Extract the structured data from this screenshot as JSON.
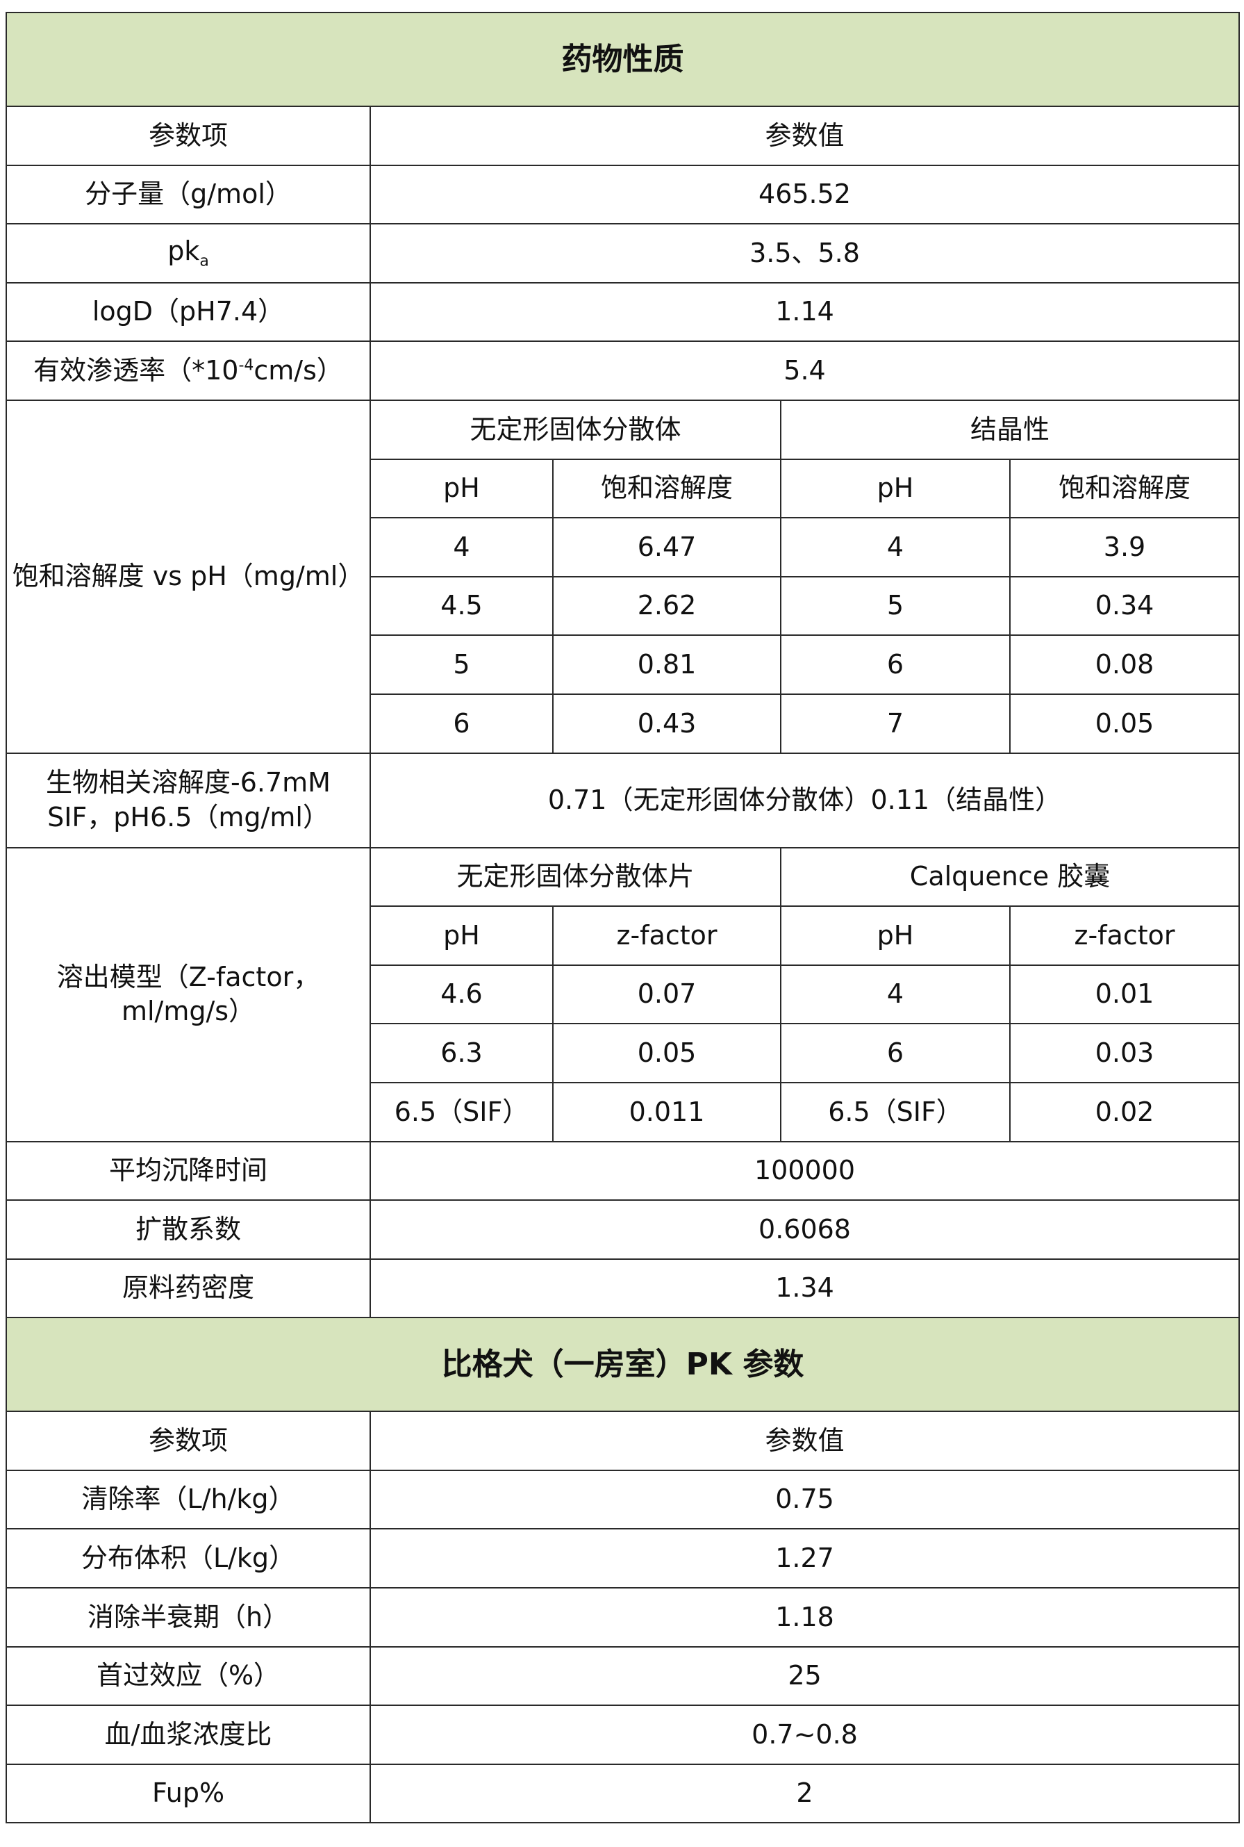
{
  "drug_properties": {
    "title": "药物性质",
    "header": {
      "param": "参数项",
      "value": "参数值"
    },
    "molecular_weight": {
      "label": "分子量（g/mol）",
      "value": "465.52"
    },
    "pka": {
      "label": "pk",
      "sub": "a",
      "value": "3.5、5.8"
    },
    "logd": {
      "label": "logD（pH7.4）",
      "value": "1.14"
    },
    "permeability": {
      "label": "有效渗透率（*10",
      "sup": "-4",
      "label_suffix": "cm/s）",
      "value": "5.4"
    },
    "solubility": {
      "label": "饱和溶解度 vs pH（mg/ml）",
      "groups": [
        "无定形固体分散体",
        "结晶性"
      ],
      "columns": [
        "pH",
        "饱和溶解度",
        "pH",
        "饱和溶解度"
      ],
      "rows": [
        [
          "4",
          "6.47",
          "4",
          "3.9"
        ],
        [
          "4.5",
          "2.62",
          "5",
          "0.34"
        ],
        [
          "5",
          "0.81",
          "6",
          "0.08"
        ],
        [
          "6",
          "0.43",
          "7",
          "0.05"
        ]
      ]
    },
    "biorelevant": {
      "label": "生物相关溶解度-6.7mM SIF，pH6.5（mg/ml）",
      "value": "0.71（无定形固体分散体）0.11（结晶性）"
    },
    "dissolution": {
      "label": "溶出模型（Z-factor，ml/mg/s）",
      "groups": [
        "无定形固体分散体片",
        "Calquence 胶囊"
      ],
      "columns": [
        "pH",
        "z-factor",
        "pH",
        "z-factor"
      ],
      "rows": [
        [
          "4.6",
          "0.07",
          "4",
          "0.01"
        ],
        [
          "6.3",
          "0.05",
          "6",
          "0.03"
        ],
        [
          "6.5（SIF）",
          "0.011",
          "6.5（SIF）",
          "0.02"
        ]
      ]
    },
    "tail_rows": [
      {
        "label": "平均沉降时间",
        "value": "100000"
      },
      {
        "label": "扩散系数",
        "value": "0.6068"
      },
      {
        "label": "原料药密度",
        "value": "1.34"
      }
    ]
  },
  "pk_parameters": {
    "title": "比格犬（一房室）PK 参数",
    "header": {
      "param": "参数项",
      "value": "参数值"
    },
    "rows": [
      {
        "label": "清除率（L/h/kg）",
        "value": "0.75"
      },
      {
        "label": "分布体积（L/kg）",
        "value": "1.27"
      },
      {
        "label": "消除半衰期（h）",
        "value": "1.18"
      },
      {
        "label": "首过效应（%）",
        "value": "25"
      },
      {
        "label": "血/血浆浓度比",
        "value": "0.7~0.8"
      },
      {
        "label": "Fup%",
        "value": "2"
      }
    ]
  },
  "colors": {
    "section_header_bg": "#d7e4bd",
    "border": "#2a2a2a"
  }
}
